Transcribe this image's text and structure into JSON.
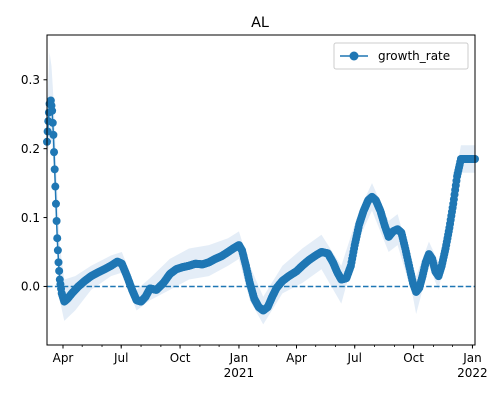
{
  "chart_data": {
    "type": "line",
    "title": "AL",
    "xlabel": "",
    "ylabel": "",
    "x_range": [
      "2020-03-07",
      "2022-01-05"
    ],
    "ylim": [
      -0.085,
      0.365
    ],
    "yticks": [
      0.0,
      0.1,
      0.2,
      0.3
    ],
    "ytick_labels": [
      "0.0",
      "0.1",
      "0.2",
      "0.3"
    ],
    "xticks": [
      {
        "date": "2020-04-01",
        "label": "Apr",
        "sublabel": ""
      },
      {
        "date": "2020-07-01",
        "label": "Jul",
        "sublabel": ""
      },
      {
        "date": "2020-10-01",
        "label": "Oct",
        "sublabel": ""
      },
      {
        "date": "2021-01-01",
        "label": "Jan",
        "sublabel": "2021"
      },
      {
        "date": "2021-04-01",
        "label": "Apr",
        "sublabel": ""
      },
      {
        "date": "2021-07-01",
        "label": "Jul",
        "sublabel": ""
      },
      {
        "date": "2021-10-01",
        "label": "Oct",
        "sublabel": ""
      },
      {
        "date": "2022-01-01",
        "label": "Jan",
        "sublabel": "2022"
      }
    ],
    "grid": false,
    "legend": {
      "position": "upper right",
      "entries": [
        "growth_rate"
      ]
    },
    "reference_line": {
      "y": 0.0,
      "style": "dashed"
    },
    "colors": {
      "series": "#1f77b4",
      "band": "#dbe7f4"
    },
    "series": [
      {
        "name": "growth_rate",
        "points": [
          [
            "2020-03-07",
            0.21
          ],
          [
            "2020-03-09",
            0.24
          ],
          [
            "2020-03-11",
            0.265
          ],
          [
            "2020-03-13",
            0.27
          ],
          [
            "2020-03-15",
            0.255
          ],
          [
            "2020-03-17",
            0.22
          ],
          [
            "2020-03-19",
            0.17
          ],
          [
            "2020-03-21",
            0.12
          ],
          [
            "2020-03-23",
            0.07
          ],
          [
            "2020-03-25",
            0.035
          ],
          [
            "2020-03-27",
            0.01
          ],
          [
            "2020-03-30",
            -0.01
          ],
          [
            "2020-04-03",
            -0.022
          ],
          [
            "2020-04-08",
            -0.018
          ],
          [
            "2020-04-15",
            -0.01
          ],
          [
            "2020-04-25",
            0.0
          ],
          [
            "2020-05-05",
            0.008
          ],
          [
            "2020-05-15",
            0.015
          ],
          [
            "2020-05-25",
            0.02
          ],
          [
            "2020-06-05",
            0.025
          ],
          [
            "2020-06-15",
            0.03
          ],
          [
            "2020-06-25",
            0.036
          ],
          [
            "2020-07-02",
            0.033
          ],
          [
            "2020-07-10",
            0.015
          ],
          [
            "2020-07-18",
            -0.005
          ],
          [
            "2020-07-25",
            -0.02
          ],
          [
            "2020-08-01",
            -0.022
          ],
          [
            "2020-08-08",
            -0.015
          ],
          [
            "2020-08-15",
            -0.003
          ],
          [
            "2020-08-25",
            -0.005
          ],
          [
            "2020-09-05",
            0.005
          ],
          [
            "2020-09-15",
            0.018
          ],
          [
            "2020-09-25",
            0.025
          ],
          [
            "2020-10-05",
            0.028
          ],
          [
            "2020-10-15",
            0.03
          ],
          [
            "2020-10-25",
            0.033
          ],
          [
            "2020-11-05",
            0.032
          ],
          [
            "2020-11-15",
            0.035
          ],
          [
            "2020-11-25",
            0.04
          ],
          [
            "2020-12-05",
            0.044
          ],
          [
            "2020-12-15",
            0.05
          ],
          [
            "2020-12-23",
            0.055
          ],
          [
            "2021-01-01",
            0.06
          ],
          [
            "2021-01-06",
            0.052
          ],
          [
            "2021-01-12",
            0.03
          ],
          [
            "2021-01-18",
            0.005
          ],
          [
            "2021-01-25",
            -0.018
          ],
          [
            "2021-02-01",
            -0.03
          ],
          [
            "2021-02-08",
            -0.035
          ],
          [
            "2021-02-15",
            -0.03
          ],
          [
            "2021-02-22",
            -0.015
          ],
          [
            "2021-03-01",
            -0.002
          ],
          [
            "2021-03-10",
            0.008
          ],
          [
            "2021-03-20",
            0.015
          ],
          [
            "2021-04-01",
            0.022
          ],
          [
            "2021-04-10",
            0.03
          ],
          [
            "2021-04-20",
            0.038
          ],
          [
            "2021-05-01",
            0.045
          ],
          [
            "2021-05-10",
            0.05
          ],
          [
            "2021-05-20",
            0.048
          ],
          [
            "2021-05-28",
            0.035
          ],
          [
            "2021-06-04",
            0.02
          ],
          [
            "2021-06-10",
            0.01
          ],
          [
            "2021-06-18",
            0.012
          ],
          [
            "2021-06-25",
            0.03
          ],
          [
            "2021-07-01",
            0.06
          ],
          [
            "2021-07-08",
            0.09
          ],
          [
            "2021-07-15",
            0.11
          ],
          [
            "2021-07-22",
            0.125
          ],
          [
            "2021-07-28",
            0.13
          ],
          [
            "2021-08-03",
            0.125
          ],
          [
            "2021-08-10",
            0.11
          ],
          [
            "2021-08-17",
            0.088
          ],
          [
            "2021-08-23",
            0.072
          ],
          [
            "2021-08-30",
            0.08
          ],
          [
            "2021-09-06",
            0.083
          ],
          [
            "2021-09-12",
            0.078
          ],
          [
            "2021-09-18",
            0.055
          ],
          [
            "2021-09-24",
            0.03
          ],
          [
            "2021-09-30",
            0.005
          ],
          [
            "2021-10-05",
            -0.008
          ],
          [
            "2021-10-10",
            -0.002
          ],
          [
            "2021-10-15",
            0.015
          ],
          [
            "2021-10-20",
            0.035
          ],
          [
            "2021-10-25",
            0.047
          ],
          [
            "2021-10-30",
            0.04
          ],
          [
            "2021-11-04",
            0.022
          ],
          [
            "2021-11-09",
            0.015
          ],
          [
            "2021-11-14",
            0.03
          ],
          [
            "2021-11-20",
            0.055
          ],
          [
            "2021-11-26",
            0.085
          ],
          [
            "2021-12-02",
            0.12
          ],
          [
            "2021-12-08",
            0.16
          ],
          [
            "2021-12-14",
            0.185
          ],
          [
            "2021-12-20",
            0.185
          ],
          [
            "2021-12-28",
            0.185
          ],
          [
            "2022-01-05",
            0.185
          ]
        ]
      }
    ],
    "band": {
      "upper": [
        [
          "2020-03-07",
          0.25
        ],
        [
          "2020-03-09",
          0.3
        ],
        [
          "2020-03-11",
          0.34
        ],
        [
          "2020-03-14",
          0.32
        ],
        [
          "2020-03-18",
          0.26
        ],
        [
          "2020-03-22",
          0.16
        ],
        [
          "2020-03-27",
          0.06
        ],
        [
          "2020-04-03",
          0.01
        ],
        [
          "2020-04-20",
          0.015
        ],
        [
          "2020-05-15",
          0.03
        ],
        [
          "2020-06-15",
          0.045
        ],
        [
          "2020-07-02",
          0.05
        ],
        [
          "2020-07-25",
          -0.005
        ],
        [
          "2020-08-15",
          0.012
        ],
        [
          "2020-09-15",
          0.04
        ],
        [
          "2020-10-15",
          0.055
        ],
        [
          "2020-11-15",
          0.06
        ],
        [
          "2020-12-15",
          0.07
        ],
        [
          "2021-01-01",
          0.08
        ],
        [
          "2021-01-18",
          0.03
        ],
        [
          "2021-02-08",
          -0.015
        ],
        [
          "2021-03-10",
          0.03
        ],
        [
          "2021-04-10",
          0.055
        ],
        [
          "2021-05-10",
          0.075
        ],
        [
          "2021-06-10",
          0.03
        ],
        [
          "2021-07-08",
          0.11
        ],
        [
          "2021-07-28",
          0.15
        ],
        [
          "2021-08-23",
          0.095
        ],
        [
          "2021-09-06",
          0.105
        ],
        [
          "2021-09-30",
          0.025
        ],
        [
          "2021-10-05",
          0.015
        ],
        [
          "2021-10-25",
          0.065
        ],
        [
          "2021-11-09",
          0.035
        ],
        [
          "2021-12-02",
          0.14
        ],
        [
          "2021-12-14",
          0.205
        ],
        [
          "2022-01-05",
          0.205
        ]
      ],
      "lower": [
        [
          "2020-03-07",
          0.18
        ],
        [
          "2020-03-09",
          0.2
        ],
        [
          "2020-03-11",
          0.21
        ],
        [
          "2020-03-14",
          0.21
        ],
        [
          "2020-03-18",
          0.17
        ],
        [
          "2020-03-22",
          0.08
        ],
        [
          "2020-03-27",
          -0.02
        ],
        [
          "2020-04-03",
          -0.05
        ],
        [
          "2020-04-20",
          -0.035
        ],
        [
          "2020-05-15",
          -0.005
        ],
        [
          "2020-06-15",
          0.015
        ],
        [
          "2020-07-02",
          0.02
        ],
        [
          "2020-07-25",
          -0.035
        ],
        [
          "2020-08-15",
          -0.02
        ],
        [
          "2020-09-15",
          -0.005
        ],
        [
          "2020-10-15",
          0.01
        ],
        [
          "2020-11-15",
          0.015
        ],
        [
          "2020-12-15",
          0.03
        ],
        [
          "2021-01-01",
          0.04
        ],
        [
          "2021-01-18",
          -0.02
        ],
        [
          "2021-02-08",
          -0.055
        ],
        [
          "2021-03-10",
          -0.01
        ],
        [
          "2021-04-10",
          0.005
        ],
        [
          "2021-05-10",
          0.025
        ],
        [
          "2021-06-10",
          -0.025
        ],
        [
          "2021-07-08",
          0.07
        ],
        [
          "2021-07-28",
          0.11
        ],
        [
          "2021-08-23",
          0.05
        ],
        [
          "2021-09-06",
          0.06
        ],
        [
          "2021-09-30",
          -0.015
        ],
        [
          "2021-10-05",
          -0.04
        ],
        [
          "2021-10-25",
          0.03
        ],
        [
          "2021-11-09",
          -0.005
        ],
        [
          "2021-12-02",
          0.1
        ],
        [
          "2021-12-14",
          0.165
        ],
        [
          "2022-01-05",
          0.165
        ]
      ]
    }
  }
}
